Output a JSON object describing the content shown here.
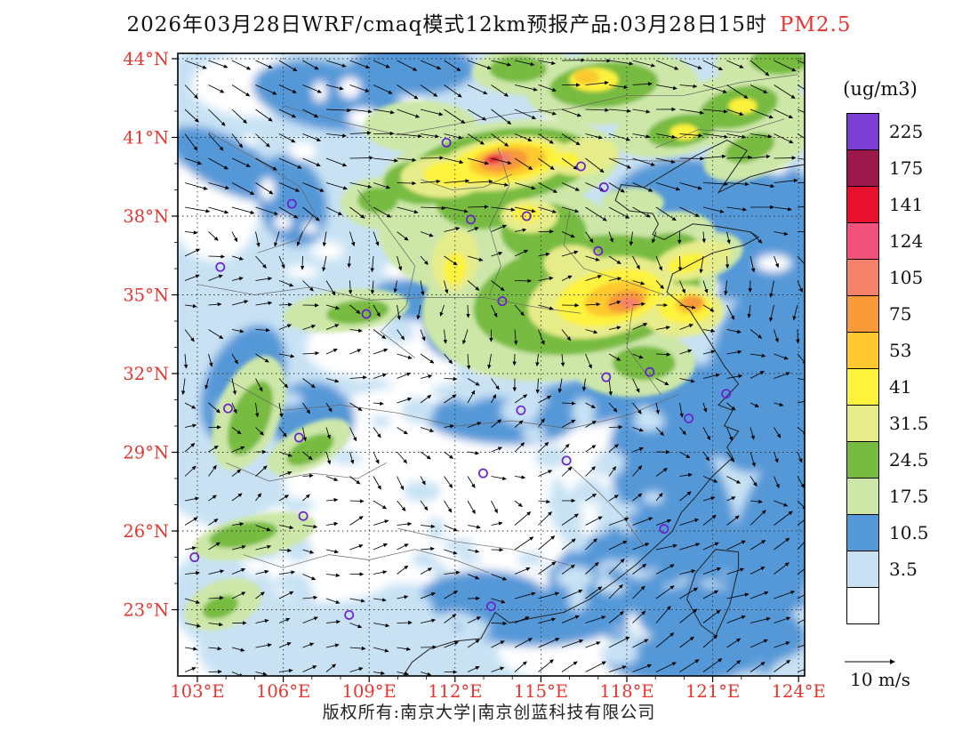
{
  "title": {
    "main": "2026年03月28日WRF/cmaq模式12km预报产品:03月28日15时",
    "pollutant": "PM2.5"
  },
  "colors": {
    "accent_red": "#e8342e",
    "frame": "#000000",
    "gridline": "#333333",
    "boundary": "#666666",
    "coastline": "#222222",
    "station": "#6a22cc",
    "arrow": "#000000"
  },
  "axes": {
    "lat_ticks": [
      {
        "value": 44,
        "label": "44°N"
      },
      {
        "value": 41,
        "label": "41°N"
      },
      {
        "value": 38,
        "label": "38°N"
      },
      {
        "value": 35,
        "label": "35°N"
      },
      {
        "value": 32,
        "label": "32°N"
      },
      {
        "value": 29,
        "label": "29°N"
      },
      {
        "value": 26,
        "label": "26°N"
      },
      {
        "value": 23,
        "label": "23°N"
      }
    ],
    "lon_ticks": [
      {
        "value": 103,
        "label": "103°E"
      },
      {
        "value": 106,
        "label": "106°E"
      },
      {
        "value": 109,
        "label": "109°E"
      },
      {
        "value": 112,
        "label": "112°E"
      },
      {
        "value": 115,
        "label": "115°E"
      },
      {
        "value": 118,
        "label": "118°E"
      },
      {
        "value": 121,
        "label": "121°E"
      },
      {
        "value": 124,
        "label": "124°E"
      }
    ]
  },
  "legend": {
    "unit": "(ug/m3)",
    "labels_top_to_bottom": [
      "225",
      "175",
      "141",
      "124",
      "105",
      "75",
      "53",
      "41",
      "31.5",
      "24.5",
      "17.5",
      "10.5",
      "3.5"
    ],
    "colors_top_to_bottom": [
      "#7b3fd2",
      "#9c1a4b",
      "#e8112d",
      "#f1527b",
      "#f4826a",
      "#f89a38",
      "#fdc92e",
      "#fdf23c",
      "#e6ec8a",
      "#77bb41",
      "#cde7a8",
      "#5598d8",
      "#c8e2f4",
      "#ffffff"
    ]
  },
  "wind_scale": {
    "label": "10 m/s"
  },
  "footer": {
    "copyright": "版权所有:南京大学|南京创蓝科技有限公司"
  },
  "stations": [
    [
      111.7,
      40.8
    ],
    [
      116.4,
      39.9
    ],
    [
      117.2,
      39.1
    ],
    [
      114.5,
      38.0
    ],
    [
      112.55,
      37.87
    ],
    [
      106.3,
      38.47
    ],
    [
      103.8,
      36.06
    ],
    [
      108.9,
      34.27
    ],
    [
      113.65,
      34.76
    ],
    [
      117.0,
      36.67
    ],
    [
      117.28,
      31.86
    ],
    [
      118.8,
      32.06
    ],
    [
      121.47,
      31.23
    ],
    [
      120.16,
      30.29
    ],
    [
      114.3,
      30.6
    ],
    [
      112.98,
      28.2
    ],
    [
      115.89,
      28.68
    ],
    [
      119.3,
      26.08
    ],
    [
      113.26,
      23.13
    ],
    [
      106.7,
      26.57
    ],
    [
      104.07,
      30.67
    ],
    [
      106.55,
      29.56
    ],
    [
      108.3,
      22.8
    ],
    [
      102.9,
      25.0
    ]
  ],
  "field_blobs": [
    [
      113.5,
      40.2,
      14,
      6.5,
      0,
      1
    ],
    [
      108,
      35.5,
      8,
      4.5,
      0,
      1
    ],
    [
      120,
      30,
      6.5,
      6,
      0,
      1
    ],
    [
      122,
      24,
      5,
      6.5,
      0,
      1
    ],
    [
      114,
      33.5,
      6,
      3,
      0,
      1
    ],
    [
      104.5,
      31,
      4,
      5,
      0,
      1
    ],
    [
      110,
      21.5,
      7,
      2.5,
      0,
      1
    ],
    [
      105.5,
      23.5,
      3.5,
      2.5,
      0,
      1
    ],
    [
      117,
      27,
      4,
      3,
      0,
      1
    ],
    [
      122.5,
      42,
      4,
      3.5,
      0,
      1
    ],
    [
      110.5,
      28.3,
      4.5,
      3.2,
      0,
      0
    ],
    [
      113.5,
      26.8,
      3.5,
      2.5,
      0,
      0
    ],
    [
      107.5,
      25.3,
      3,
      2,
      0,
      0
    ],
    [
      115.8,
      29.3,
      2.6,
      2,
      0,
      0
    ],
    [
      111.5,
      32.8,
      2.6,
      1.6,
      0,
      0
    ],
    [
      105,
      43,
      2.2,
      1.2,
      0,
      0
    ],
    [
      103.6,
      38.5,
      1.6,
      2.2,
      0,
      0
    ],
    [
      117.5,
      21.4,
      4,
      1.4,
      0,
      0
    ],
    [
      108.8,
      33,
      2,
      1.2,
      0,
      0
    ],
    [
      119,
      28.8,
      1.6,
      1.3,
      0,
      0
    ],
    [
      119.6,
      27.4,
      1.8,
      3.6,
      -28,
      2
    ],
    [
      117.4,
      24.3,
      2.2,
      1.6,
      -15,
      2
    ],
    [
      121.2,
      30.6,
      2.6,
      1.8,
      0,
      2
    ],
    [
      122.6,
      31.8,
      1.8,
      3.6,
      8,
      2
    ],
    [
      123.2,
      25.5,
      1.5,
      4,
      15,
      2
    ],
    [
      121.3,
      22.4,
      3,
      1.4,
      10,
      2
    ],
    [
      120,
      38.4,
      2.6,
      1.8,
      0,
      2
    ],
    [
      123,
      37.3,
      2,
      2.8,
      0,
      2
    ],
    [
      104.6,
      31.6,
      1.3,
      2.4,
      25,
      2
    ],
    [
      107,
      30.3,
      1.5,
      1.4,
      0,
      2
    ],
    [
      104,
      40,
      2.2,
      1,
      28,
      2
    ],
    [
      107.5,
      42.6,
      2.6,
      1.3,
      10,
      2
    ],
    [
      110.5,
      43.6,
      2.2,
      1,
      0,
      2
    ],
    [
      113.5,
      30.2,
      2.6,
      0.9,
      4,
      2
    ],
    [
      116.5,
      30.9,
      2.2,
      0.9,
      -8,
      2
    ],
    [
      118.6,
      31.9,
      2,
      1.1,
      0,
      2
    ],
    [
      112.5,
      33.6,
      1.6,
      1.2,
      0,
      2
    ],
    [
      114.8,
      22.7,
      3,
      1.1,
      0,
      2
    ],
    [
      123.8,
      31,
      1.3,
      3,
      0,
      2
    ],
    [
      119.8,
      21.1,
      2.6,
      0.9,
      0,
      2
    ],
    [
      112,
      34.9,
      3,
      1,
      0,
      2
    ],
    [
      121.5,
      36,
      1.5,
      1.2,
      0,
      2
    ],
    [
      106.3,
      38.6,
      1.2,
      1.8,
      -20,
      2
    ],
    [
      123.5,
      34.5,
      1.2,
      1.8,
      0,
      2
    ],
    [
      113,
      23.5,
      2.2,
      1,
      0,
      2
    ],
    [
      112.5,
      37.6,
      3.2,
      2.6,
      0,
      3
    ],
    [
      116,
      35,
      5.2,
      3.2,
      -10,
      3
    ],
    [
      113.6,
      39.8,
      4.2,
      1.8,
      -8,
      3
    ],
    [
      115,
      37.2,
      2.6,
      1.9,
      0,
      3
    ],
    [
      118.8,
      36.7,
      2.4,
      1.3,
      -18,
      3
    ],
    [
      108.2,
      34.4,
      2.2,
      0.8,
      -6,
      3
    ],
    [
      118.2,
      32.4,
      2.2,
      1.3,
      0,
      3
    ],
    [
      104.8,
      30.5,
      1.1,
      2.3,
      22,
      3
    ],
    [
      106.9,
      29.2,
      1.6,
      0.8,
      -28,
      3
    ],
    [
      105,
      25.8,
      2.2,
      0.8,
      -12,
      3
    ],
    [
      103.9,
      23.2,
      1.4,
      0.9,
      -20,
      3
    ],
    [
      117.5,
      42.9,
      3,
      1.4,
      -5,
      3
    ],
    [
      121.6,
      42.1,
      2.5,
      1.3,
      -14,
      3
    ],
    [
      123.1,
      43.8,
      2,
      1,
      0,
      3
    ],
    [
      114.5,
      43.5,
      1.9,
      0.9,
      0,
      3
    ],
    [
      119.6,
      41.3,
      2.1,
      1,
      -10,
      3
    ],
    [
      110.8,
      41.4,
      2,
      1,
      0,
      3
    ],
    [
      122.5,
      40.5,
      1.9,
      1,
      -20,
      3
    ],
    [
      109.5,
      38.5,
      1.5,
      1,
      0,
      3
    ],
    [
      116,
      33,
      2.6,
      1.1,
      -5,
      3
    ],
    [
      120.4,
      36.4,
      1.7,
      0.9,
      -15,
      3
    ],
    [
      118.2,
      38.5,
      1.1,
      0.6,
      0,
      3
    ],
    [
      123.8,
      41.8,
      1.3,
      0.9,
      0,
      3
    ],
    [
      113.6,
      39.9,
      3.3,
      1.4,
      -8,
      4
    ],
    [
      116.6,
      35,
      4,
      2.2,
      -10,
      4
    ],
    [
      115.1,
      37.4,
      1.5,
      1.1,
      0,
      4
    ],
    [
      112.9,
      38.6,
      1.6,
      1.1,
      0,
      4
    ],
    [
      108.6,
      34.35,
      1.1,
      0.45,
      -6,
      4
    ],
    [
      119.2,
      36.5,
      1.4,
      0.8,
      -15,
      4
    ],
    [
      104.85,
      30.3,
      0.65,
      1.5,
      22,
      4
    ],
    [
      106.95,
      29.1,
      0.9,
      0.45,
      -28,
      4
    ],
    [
      104.6,
      25.85,
      1.2,
      0.45,
      -10,
      4
    ],
    [
      103.8,
      23.1,
      0.65,
      0.4,
      -20,
      4
    ],
    [
      117.2,
      43,
      1.9,
      0.85,
      -5,
      4
    ],
    [
      121.9,
      42.15,
      1.4,
      0.75,
      -14,
      4
    ],
    [
      123.3,
      43.9,
      1,
      0.5,
      0,
      4
    ],
    [
      114.2,
      43.6,
      1,
      0.5,
      0,
      4
    ],
    [
      119.9,
      41.25,
      1.2,
      0.6,
      -10,
      4
    ],
    [
      122.3,
      40.6,
      0.9,
      0.5,
      -20,
      4
    ],
    [
      118.6,
      32.4,
      1.1,
      0.65,
      0,
      4
    ],
    [
      110.9,
      39.3,
      1.4,
      0.85,
      0,
      4
    ],
    [
      109.3,
      38.6,
      0.7,
      0.5,
      0,
      4
    ],
    [
      113.7,
      40,
      2.4,
      1,
      -8,
      5
    ],
    [
      117.1,
      34.9,
      2.6,
      1.5,
      -12,
      5
    ],
    [
      114.6,
      38,
      1,
      0.65,
      0,
      5
    ],
    [
      112,
      36.3,
      0.8,
      1.2,
      10,
      5
    ],
    [
      111.6,
      39.5,
      1.5,
      0.8,
      0,
      5
    ],
    [
      120.3,
      36.3,
      1.4,
      0.7,
      -15,
      5
    ],
    [
      119.9,
      34.4,
      1.5,
      1,
      0,
      5
    ],
    [
      116.1,
      36.2,
      1,
      0.7,
      0,
      5
    ],
    [
      116.5,
      40.25,
      1.2,
      0.7,
      -10,
      5
    ],
    [
      113.75,
      40.05,
      1.9,
      0.8,
      -8,
      6
    ],
    [
      117.4,
      34.9,
      1.9,
      1.05,
      -12,
      6
    ],
    [
      111.9,
      39.6,
      1,
      0.5,
      0,
      6
    ],
    [
      120.05,
      34.5,
      0.95,
      0.6,
      0,
      6
    ],
    [
      116.85,
      43.2,
      0.85,
      0.45,
      0,
      6
    ],
    [
      120,
      41.2,
      0.5,
      0.3,
      0,
      6
    ],
    [
      114.5,
      38.1,
      0.5,
      0.33,
      0,
      6
    ],
    [
      112,
      36,
      0.4,
      0.6,
      10,
      6
    ],
    [
      122.05,
      42.2,
      0.5,
      0.3,
      0,
      6
    ],
    [
      120.1,
      36.2,
      0.7,
      0.35,
      -15,
      6
    ],
    [
      115.9,
      40.15,
      0.45,
      0.28,
      0,
      6
    ],
    [
      113.85,
      40.1,
      1.35,
      0.6,
      -8,
      7
    ],
    [
      117.65,
      34.85,
      1.15,
      0.65,
      -12,
      7
    ],
    [
      116.6,
      43.3,
      0.45,
      0.27,
      0,
      7
    ],
    [
      120.2,
      34.6,
      0.5,
      0.33,
      0,
      7
    ],
    [
      113.7,
      40.12,
      0.85,
      0.42,
      -8,
      8
    ],
    [
      117.95,
      34.75,
      0.65,
      0.4,
      -12,
      8
    ],
    [
      120.3,
      34.72,
      0.4,
      0.26,
      0,
      8
    ],
    [
      113.5,
      40.16,
      0.5,
      0.26,
      -8,
      9
    ],
    [
      118.1,
      34.7,
      0.32,
      0.2,
      0,
      9
    ],
    [
      113.35,
      40.17,
      0.27,
      0.15,
      -8,
      11
    ]
  ],
  "coastline": [
    [
      124.4,
      40.0
    ],
    [
      123.3,
      39.8
    ],
    [
      122.3,
      39.5
    ],
    [
      121.2,
      38.9
    ],
    [
      121.7,
      39.7
    ],
    [
      122.2,
      40.5
    ],
    [
      121.5,
      40.9
    ],
    [
      120.4,
      40.3
    ],
    [
      119.5,
      39.7
    ],
    [
      118.6,
      39.1
    ],
    [
      117.8,
      39.2
    ],
    [
      117.6,
      38.6
    ],
    [
      118.1,
      38.2
    ],
    [
      118.9,
      38.1
    ],
    [
      119.1,
      37.7
    ],
    [
      118.9,
      37.3
    ],
    [
      119.3,
      37.1
    ],
    [
      120.3,
      37.7
    ],
    [
      121.2,
      37.6
    ],
    [
      122.3,
      37.4
    ],
    [
      122.6,
      37.2
    ],
    [
      122.1,
      36.9
    ],
    [
      121.0,
      36.6
    ],
    [
      120.3,
      36.2
    ],
    [
      119.6,
      35.8
    ],
    [
      119.4,
      35.1
    ],
    [
      120.2,
      34.4
    ],
    [
      120.9,
      33.2
    ],
    [
      121.4,
      32.3
    ],
    [
      121.9,
      31.6
    ],
    [
      121.2,
      30.8
    ],
    [
      121.7,
      30.6
    ],
    [
      121.4,
      30.0
    ],
    [
      121.9,
      29.8
    ],
    [
      121.5,
      29.2
    ],
    [
      121.7,
      28.8
    ],
    [
      121.0,
      28.1
    ],
    [
      120.4,
      27.3
    ],
    [
      119.9,
      26.7
    ],
    [
      119.6,
      26.0
    ],
    [
      119.0,
      25.4
    ],
    [
      118.3,
      24.7
    ],
    [
      117.6,
      24.1
    ],
    [
      116.7,
      23.4
    ],
    [
      115.8,
      22.9
    ],
    [
      114.8,
      22.7
    ],
    [
      113.9,
      22.5
    ],
    [
      113.4,
      22.9
    ],
    [
      112.9,
      21.9
    ],
    [
      112.0,
      21.8
    ],
    [
      111.1,
      21.5
    ],
    [
      110.5,
      21.0
    ],
    [
      110.2,
      20.5
    ]
  ],
  "taiwan": [
    [
      121.9,
      25.2
    ],
    [
      121.1,
      25.3
    ],
    [
      120.4,
      24.4
    ],
    [
      120.1,
      23.4
    ],
    [
      120.6,
      22.4
    ],
    [
      121.1,
      22.0
    ],
    [
      121.6,
      23.2
    ],
    [
      121.9,
      24.6
    ],
    [
      121.9,
      25.2
    ]
  ],
  "boundaries": [
    [
      [
        103,
        35.4
      ],
      [
        105,
        35.0
      ],
      [
        107,
        35.3
      ],
      [
        109,
        34.8
      ],
      [
        111,
        34.9
      ],
      [
        113,
        34.9
      ],
      [
        115,
        34.5
      ],
      [
        116.4,
        34.3
      ]
    ],
    [
      [
        113.5,
        40.6
      ],
      [
        113.9,
        39.2
      ],
      [
        113.2,
        37.6
      ],
      [
        113.6,
        36.1
      ],
      [
        113.2,
        35.0
      ]
    ],
    [
      [
        116,
        38.2
      ],
      [
        115.8,
        36.9
      ],
      [
        116.5,
        36.0
      ],
      [
        118,
        35.5
      ],
      [
        119.3,
        35.0
      ]
    ],
    [
      [
        118.2,
        34.5
      ],
      [
        118.0,
        33.0
      ],
      [
        118.6,
        32.1
      ],
      [
        119.2,
        31.2
      ]
    ],
    [
      [
        104,
        31.8
      ],
      [
        106,
        30.6
      ],
      [
        108,
        30.8
      ],
      [
        110,
        30.5
      ],
      [
        112,
        30.0
      ],
      [
        114,
        30.2
      ],
      [
        116,
        29.9
      ],
      [
        118,
        30.4
      ],
      [
        119.8,
        31.2
      ]
    ],
    [
      [
        110,
        26.1
      ],
      [
        112,
        25.6
      ],
      [
        114,
        25.3
      ],
      [
        116,
        24.7
      ]
    ],
    [
      [
        116,
        28.5
      ],
      [
        117,
        27.5
      ],
      [
        117.9,
        26.5
      ],
      [
        118.6,
        25.4
      ]
    ],
    [
      [
        108.6,
        39.0
      ],
      [
        109.6,
        37.6
      ],
      [
        110.6,
        36.1
      ],
      [
        110.3,
        34.6
      ],
      [
        109.4,
        33.6
      ],
      [
        110.6,
        32.6
      ]
    ],
    [
      [
        104,
        28.6
      ],
      [
        105.5,
        27.9
      ],
      [
        107,
        28.2
      ],
      [
        108.6,
        28.0
      ],
      [
        109.6,
        28.6
      ]
    ],
    [
      [
        106,
        42.2
      ],
      [
        108,
        41.6
      ],
      [
        110,
        41.1
      ],
      [
        112,
        41.5
      ],
      [
        114,
        41.9
      ],
      [
        116,
        42.1
      ],
      [
        118,
        42.6
      ],
      [
        120,
        42.6
      ],
      [
        122,
        43.1
      ],
      [
        124,
        43.4
      ]
    ],
    [
      [
        103.4,
        41.2
      ],
      [
        105,
        40.2
      ],
      [
        106.6,
        39.1
      ],
      [
        107.1,
        38.1
      ],
      [
        106.5,
        37.1
      ],
      [
        105.1,
        36.6
      ]
    ],
    [
      [
        104.6,
        25.1
      ],
      [
        106,
        24.6
      ],
      [
        107.6,
        25.1
      ],
      [
        109,
        24.9
      ],
      [
        110.6,
        25.3
      ],
      [
        112,
        24.9
      ],
      [
        113.2,
        24.4
      ]
    ],
    [
      [
        119,
        40.6
      ],
      [
        120.5,
        41.3
      ],
      [
        122,
        41.2
      ],
      [
        123.5,
        41.7
      ]
    ],
    [
      [
        110.8,
        39.4
      ],
      [
        111.9,
        39.0
      ],
      [
        113.0,
        39.1
      ],
      [
        114.0,
        39.6
      ]
    ],
    [
      [
        117.5,
        40.2
      ],
      [
        118.8,
        40.1
      ],
      [
        120.2,
        40.1
      ]
    ]
  ]
}
